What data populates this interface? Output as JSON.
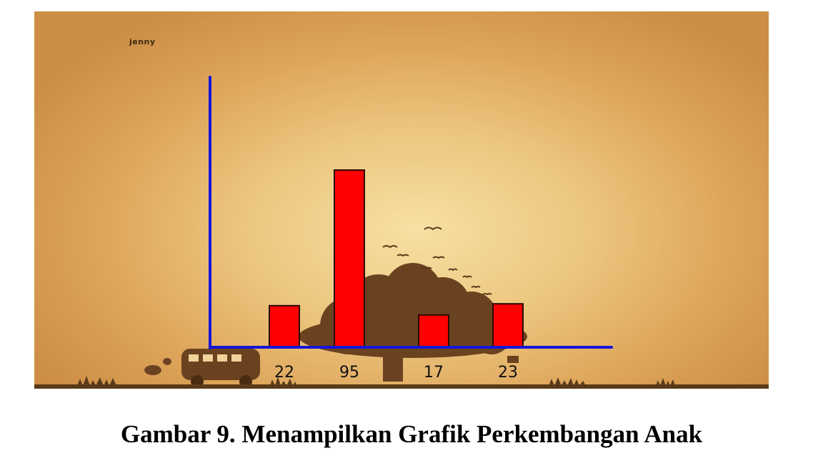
{
  "user_label": "jenny",
  "caption": "Gambar 9. Menampilkan Grafik Perkembangan Anak",
  "colors": {
    "bar": "#ff0000",
    "bar_outline": "#2a0b00",
    "axis": "#1515d8",
    "silhouette": "#6b4220",
    "value_label": "#111111"
  },
  "chart_data": {
    "type": "bar",
    "title": "",
    "xlabel": "",
    "ylabel": "",
    "categories": [
      "22",
      "95",
      "17",
      "23"
    ],
    "values": [
      22,
      95,
      17,
      23
    ],
    "ylim": [
      0,
      145
    ],
    "grid": false,
    "tick_labels": [
      "22",
      "95",
      "17",
      "23"
    ]
  }
}
